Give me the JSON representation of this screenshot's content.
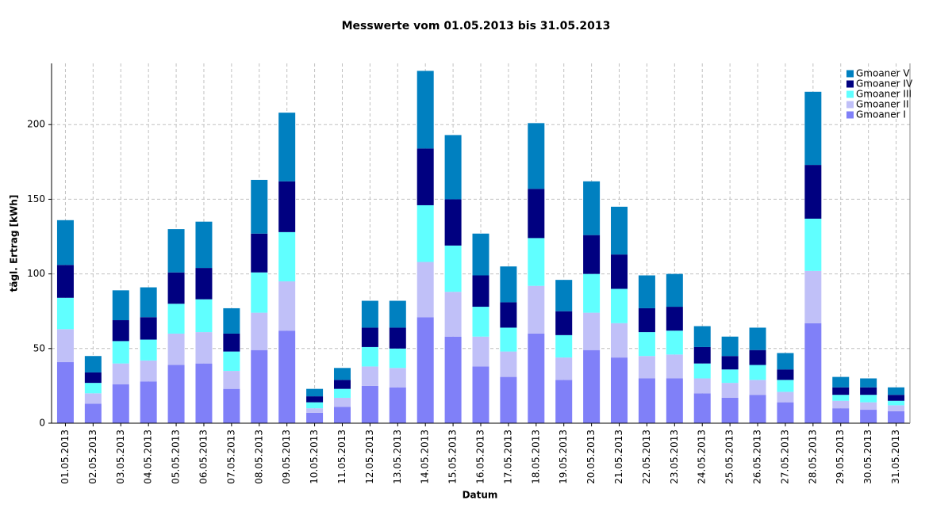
{
  "chart_data": {
    "type": "stacked_bar",
    "title": "Messwerte vom 01.05.2013 bis 31.05.2013",
    "x_label": "Datum",
    "y_label": "tägl. Ertrag [kWh]",
    "categories": [
      "01.05.2013",
      "02.05.2013",
      "03.05.2013",
      "04.05.2013",
      "05.05.2013",
      "06.05.2013",
      "07.05.2013",
      "08.05.2013",
      "09.05.2013",
      "10.05.2013",
      "11.05.2013",
      "12.05.2013",
      "13.05.2013",
      "14.05.2013",
      "15.05.2013",
      "16.05.2013",
      "17.05.2013",
      "18.05.2013",
      "19.05.2013",
      "20.05.2013",
      "21.05.2013",
      "22.05.2013",
      "23.05.2013",
      "24.05.2013",
      "25.05.2013",
      "26.05.2013",
      "27.05.2013",
      "28.05.2013",
      "29.05.2013",
      "30.05.2013",
      "31.05.2013"
    ],
    "series": [
      {
        "name": "Gmoaner I",
        "color": "#8080f8",
        "values": [
          41,
          13,
          26,
          28,
          39,
          40,
          23,
          49,
          62,
          7,
          11,
          25,
          24,
          71,
          58,
          38,
          31,
          60,
          29,
          49,
          44,
          30,
          30,
          20,
          17,
          19,
          14,
          67,
          10,
          9,
          8
        ]
      },
      {
        "name": "Gmoaner II",
        "color": "#c0c0f8",
        "values": [
          22,
          7,
          14,
          14,
          21,
          21,
          12,
          25,
          33,
          3,
          6,
          13,
          13,
          37,
          30,
          20,
          17,
          32,
          15,
          25,
          23,
          15,
          16,
          10,
          10,
          10,
          7,
          35,
          5,
          5,
          4
        ]
      },
      {
        "name": "Gmoaner III",
        "color": "#60ffff",
        "values": [
          21,
          7,
          15,
          14,
          20,
          22,
          13,
          27,
          33,
          4,
          6,
          13,
          13,
          38,
          31,
          20,
          16,
          32,
          15,
          26,
          23,
          16,
          16,
          10,
          9,
          10,
          8,
          35,
          4,
          5,
          3
        ]
      },
      {
        "name": "Gmoaner IV",
        "color": "#000080",
        "values": [
          22,
          7,
          14,
          15,
          21,
          21,
          12,
          26,
          34,
          4,
          6,
          13,
          14,
          38,
          31,
          21,
          17,
          33,
          16,
          26,
          23,
          16,
          16,
          11,
          9,
          10,
          7,
          36,
          5,
          5,
          4
        ]
      },
      {
        "name": "Gmoaner V",
        "color": "#0080c0",
        "values": [
          30,
          11,
          20,
          20,
          29,
          31,
          17,
          36,
          46,
          5,
          8,
          18,
          18,
          52,
          43,
          28,
          24,
          44,
          21,
          36,
          32,
          22,
          22,
          14,
          13,
          15,
          11,
          49,
          7,
          6,
          5
        ]
      }
    ],
    "ylim": [
      0,
      241
    ],
    "yticks": [
      0,
      50,
      100,
      150,
      200
    ],
    "grid": true,
    "legend": "top-right"
  }
}
